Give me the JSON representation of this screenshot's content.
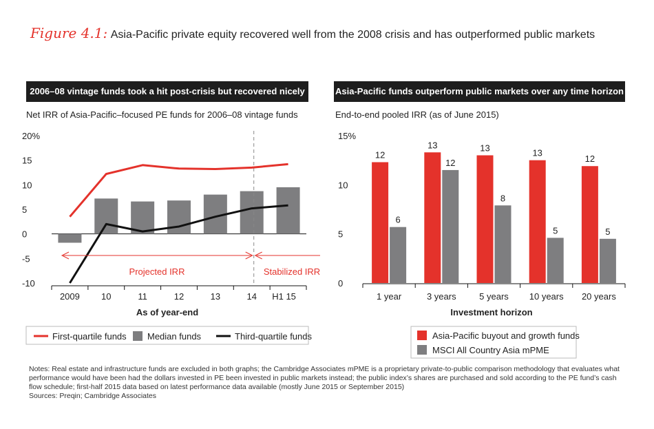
{
  "figure": {
    "label": "Figure 4.1:",
    "title": "Asia-Pacific private equity recovered well from the 2008 crisis and has outperformed public markets"
  },
  "left_panel": {
    "header": "2006–08 vintage funds took a hit post-crisis but recovered nicely",
    "subtitle": "Net IRR of Asia-Pacific–focused PE funds for 2006–08 vintage funds"
  },
  "right_panel": {
    "header": "Asia-Pacific funds outperform public markets over any time horizon",
    "subtitle": "End-to-end pooled IRR (as of June 2015)"
  },
  "colors": {
    "red": "#e4322b",
    "gray": "#7e7e80",
    "black": "#111111",
    "grid": "#cccccc"
  },
  "chart_data": [
    {
      "type": "bar+line",
      "title": "2006–08 vintage funds took a hit post-crisis but recovered nicely",
      "ylabel": "Net IRR of Asia-Pacific–focused PE funds for 2006–08 vintage funds",
      "xlabel": "As of year-end",
      "categories": [
        "2009",
        "10",
        "11",
        "12",
        "13",
        "14",
        "H1 15"
      ],
      "yticks": [
        "20%",
        "15",
        "10",
        "5",
        "0",
        "-5",
        "-10"
      ],
      "ylim": [
        -10,
        20
      ],
      "series": [
        {
          "name": "First-quartile funds",
          "kind": "line",
          "color": "red",
          "values": [
            3.5,
            12.2,
            14.0,
            13.3,
            13.2,
            13.5,
            14.2
          ]
        },
        {
          "name": "Median funds",
          "kind": "bar",
          "color": "gray",
          "values": [
            -1.8,
            7.2,
            6.6,
            6.8,
            8.0,
            8.7,
            9.5
          ]
        },
        {
          "name": "Third-quartile funds",
          "kind": "line",
          "color": "black",
          "values": [
            -10.0,
            2.0,
            0.5,
            1.5,
            3.5,
            5.2,
            5.8
          ]
        }
      ],
      "annotations": {
        "projected": "Projected IRR",
        "stabilized": "Stabilized IRR",
        "divider_at": "14"
      },
      "legend": [
        "First-quartile funds",
        "Median funds",
        "Third-quartile funds"
      ]
    },
    {
      "type": "bar",
      "title": "Asia-Pacific funds outperform public markets over any time horizon",
      "ylabel": "End-to-end pooled IRR (as of June 2015)",
      "xlabel": "Investment horizon",
      "categories": [
        "1 year",
        "3 years",
        "5 years",
        "10 years",
        "20 years"
      ],
      "yticks": [
        "15%",
        "10",
        "5",
        "0"
      ],
      "ylim": [
        0,
        15
      ],
      "series": [
        {
          "name": "Asia-Pacific buyout and growth funds",
          "color": "red",
          "values": [
            12.3,
            13.3,
            13.0,
            12.5,
            11.9
          ],
          "labels": [
            "12",
            "13",
            "13",
            "13",
            "12"
          ]
        },
        {
          "name": "MSCI All Country Asia mPME",
          "color": "gray",
          "values": [
            5.7,
            11.5,
            7.9,
            4.6,
            4.5
          ],
          "labels": [
            "6",
            "12",
            "8",
            "5",
            "5"
          ]
        }
      ],
      "legend": [
        "Asia-Pacific buyout and growth funds",
        "MSCI All Country Asia mPME"
      ]
    }
  ],
  "notes": {
    "text": "Notes: Real estate and infrastructure funds are excluded in both graphs; the Cambridge Associates mPME is a proprietary private-to-public comparison methodology that evaluates what performance would have been had the dollars invested in PE been invested in public markets instead; the public index’s shares are purchased and sold according to the PE fund’s cash flow schedule; first-half 2015 data based on latest performance data available (mostly June 2015 or September 2015)",
    "sources": "Sources: Preqin; Cambridge Associates"
  }
}
